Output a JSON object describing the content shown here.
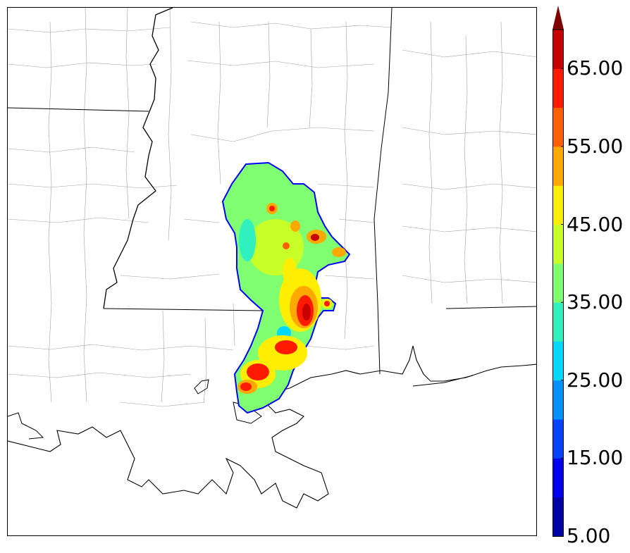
{
  "colorbar": {
    "levels": [
      5,
      10,
      15,
      20,
      25,
      30,
      35,
      40,
      45,
      50,
      55,
      60,
      65,
      70
    ],
    "colors": [
      "#0000a8",
      "#0000f0",
      "#0044ff",
      "#0090ff",
      "#00d8ff",
      "#30f0c0",
      "#80ff70",
      "#c8ff28",
      "#ffee00",
      "#ffa800",
      "#ff6000",
      "#ff1a00",
      "#c80000"
    ],
    "extend_color": "#800000",
    "extend": "max",
    "tick_labels": [
      "5.00",
      "15.00",
      "25.00",
      "35.00",
      "45.00",
      "55.00",
      "65.00"
    ]
  },
  "map": {
    "background": "#ffffff",
    "state_line_color": "#000000",
    "county_line_color": "#9a9a9a",
    "coastline_color": "#000000",
    "field_outline_color": "#0000ff"
  }
}
